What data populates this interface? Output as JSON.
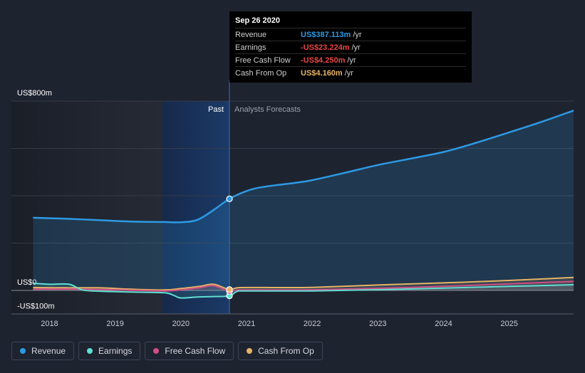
{
  "tooltip": {
    "date": "Sep 26 2020",
    "rows": [
      {
        "label": "Revenue",
        "value": "US$387.113m",
        "unit": "/yr",
        "color": "#2d9ae4"
      },
      {
        "label": "Earnings",
        "value": "-US$23.224m",
        "unit": "/yr",
        "color": "#e84646"
      },
      {
        "label": "Free Cash Flow",
        "value": "-US$4.250m",
        "unit": "/yr",
        "color": "#e84646"
      },
      {
        "label": "Cash From Op",
        "value": "US$4.160m",
        "unit": "/yr",
        "color": "#e8b366"
      }
    ]
  },
  "legend": [
    {
      "label": "Revenue",
      "color": "#2d9ae4"
    },
    {
      "label": "Earnings",
      "color": "#5fe0d2"
    },
    {
      "label": "Free Cash Flow",
      "color": "#d04f86"
    },
    {
      "label": "Cash From Op",
      "color": "#e8b366"
    }
  ],
  "chart_data": {
    "type": "line",
    "y_tick_labels": [
      {
        "value": 800,
        "label": "US$800m"
      },
      {
        "value": 0,
        "label": "US$0"
      },
      {
        "value": -100,
        "label": "-US$100m"
      }
    ],
    "ylim": [
      -100,
      800
    ],
    "x_ticks": [
      "2018",
      "2019",
      "2020",
      "2021",
      "2022",
      "2023",
      "2024",
      "2025"
    ],
    "xlim": [
      2017.42,
      2025.98
    ],
    "past_label": "Past",
    "forecast_label": "Analysts Forecasts",
    "divider_x": 2020.74,
    "highlight_start": 2019.72,
    "grid": true,
    "series": [
      {
        "name": "Revenue",
        "color": "#2d9ae4",
        "fill": true,
        "x": [
          2017.75,
          2018.25,
          2018.75,
          2019.25,
          2019.75,
          2020.0,
          2020.25,
          2020.5,
          2020.74,
          2021.0,
          2021.25,
          2021.75,
          2022.0,
          2022.5,
          2023.0,
          2023.5,
          2024.0,
          2024.5,
          2025.0,
          2025.5,
          2025.98
        ],
        "values": [
          307,
          303,
          297,
          291,
          289,
          288,
          298,
          340,
          387,
          420,
          437,
          455,
          466,
          497,
          530,
          557,
          585,
          624,
          668,
          713,
          760
        ]
      },
      {
        "name": "Earnings",
        "color": "#5fe0d2",
        "fill": false,
        "x": [
          2017.75,
          2018.0,
          2018.3,
          2018.5,
          2018.75,
          2019.25,
          2019.75,
          2019.9,
          2020.0,
          2020.25,
          2020.5,
          2020.74,
          2020.85,
          2021.0,
          2022.0,
          2023.0,
          2024.0,
          2025.0,
          2025.98
        ],
        "values": [
          30,
          26,
          26,
          2,
          -3,
          -7,
          -10,
          -22,
          -32,
          -28,
          -26,
          -23,
          -5,
          -2,
          -2,
          3,
          10,
          17,
          24
        ]
      },
      {
        "name": "Free Cash Flow",
        "color": "#d04f86",
        "fill": false,
        "x": [
          2017.75,
          2018.25,
          2018.75,
          2019.25,
          2019.75,
          2020.0,
          2020.3,
          2020.5,
          2020.74,
          2020.9,
          2021.5,
          2022.0,
          2023.0,
          2024.0,
          2025.0,
          2025.98
        ],
        "values": [
          5,
          6,
          4,
          1,
          -2,
          2,
          12,
          20,
          -4,
          2,
          2,
          3,
          9,
          17,
          28,
          38
        ]
      },
      {
        "name": "Cash From Op",
        "color": "#e8b366",
        "fill": false,
        "x": [
          2017.75,
          2018.25,
          2018.75,
          2019.25,
          2019.75,
          2020.0,
          2020.3,
          2020.5,
          2020.74,
          2020.9,
          2021.5,
          2022.0,
          2023.0,
          2024.0,
          2025.0,
          2025.98
        ],
        "values": [
          12,
          11,
          11,
          5,
          2,
          8,
          18,
          26,
          4,
          12,
          12,
          13,
          23,
          32,
          42,
          55
        ]
      }
    ]
  }
}
